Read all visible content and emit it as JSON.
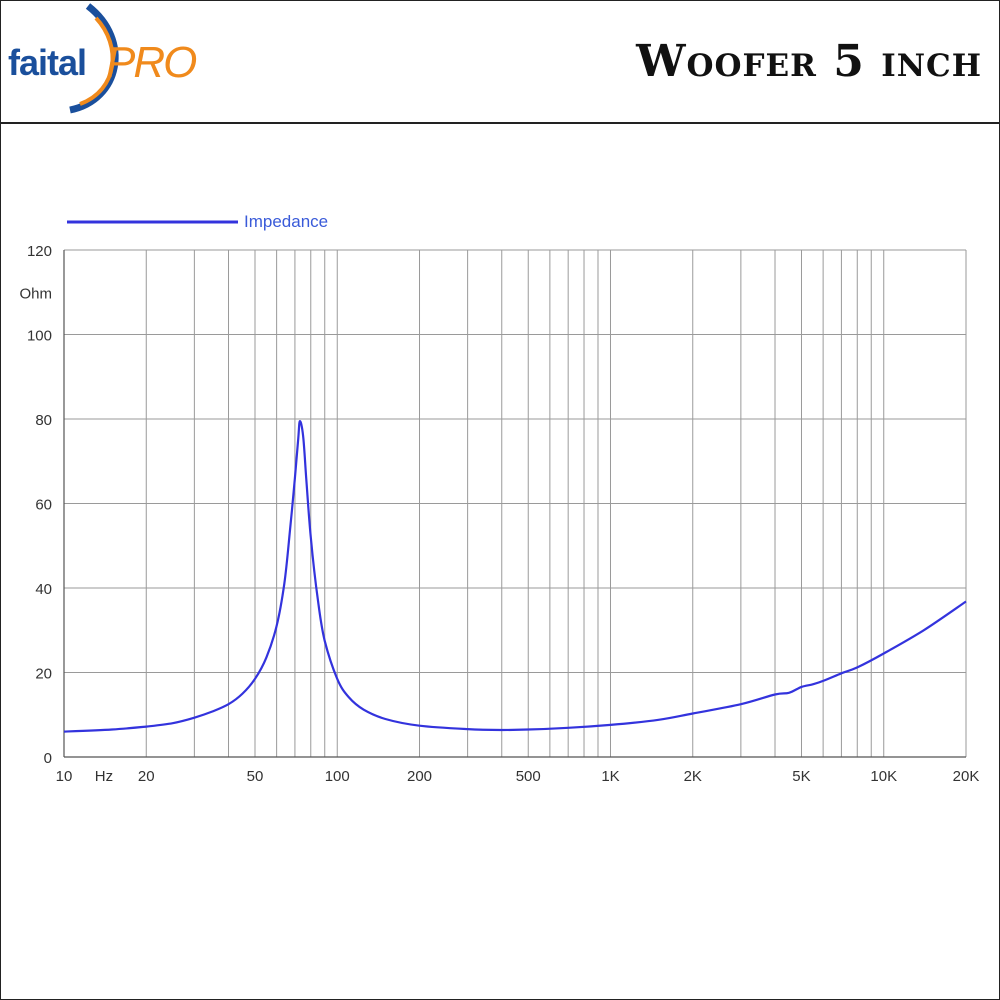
{
  "header": {
    "logo_main": "faital",
    "logo_pro": "PRO",
    "title": "Woofer 5 inch"
  },
  "colors": {
    "brand_blue": "#1a4f9c",
    "brand_orange": "#f08a1c",
    "series_blue": "#3333dd",
    "grid": "#9a9a9a"
  },
  "chart_data": {
    "type": "line",
    "x_scale": "log",
    "xlim": [
      10,
      20000
    ],
    "ylim": [
      0,
      120
    ],
    "ylabel": "Ohm",
    "xlabel": "Hz",
    "grid": true,
    "legend": "top-left",
    "y_ticks": [
      0,
      20,
      40,
      60,
      80,
      100,
      120
    ],
    "x_ticks": [
      {
        "value": 10,
        "label": "10"
      },
      {
        "value": 20,
        "label": "20"
      },
      {
        "value": 50,
        "label": "50"
      },
      {
        "value": 100,
        "label": "100"
      },
      {
        "value": 200,
        "label": "200"
      },
      {
        "value": 500,
        "label": "500"
      },
      {
        "value": 1000,
        "label": "1K"
      },
      {
        "value": 2000,
        "label": "2K"
      },
      {
        "value": 5000,
        "label": "5K"
      },
      {
        "value": 10000,
        "label": "10K"
      },
      {
        "value": 20000,
        "label": "20K"
      }
    ],
    "x_unit_label": {
      "value": 14,
      "label": "Hz"
    },
    "series": [
      {
        "name": "Impedance",
        "x": [
          10,
          15,
          20,
          25,
          30,
          35,
          40,
          45,
          50,
          55,
          60,
          64,
          67,
          70,
          72,
          73,
          75,
          77,
          80,
          85,
          90,
          100,
          110,
          125,
          150,
          200,
          300,
          400,
          500,
          700,
          1000,
          1500,
          2000,
          3000,
          4000,
          4500,
          5000,
          5500,
          6000,
          7000,
          8000,
          10000,
          14000,
          20000
        ],
        "y": [
          6.0,
          6.5,
          7.2,
          8.0,
          9.3,
          10.8,
          12.5,
          15.0,
          18.5,
          23.5,
          31.0,
          41.0,
          53.0,
          66.0,
          75.5,
          79.5,
          76.0,
          66.0,
          52.0,
          37.0,
          27.5,
          18.5,
          14.2,
          11.2,
          9.0,
          7.4,
          6.6,
          6.4,
          6.5,
          6.9,
          7.6,
          8.8,
          10.3,
          12.5,
          14.8,
          15.2,
          16.6,
          17.2,
          18.0,
          19.8,
          21.2,
          24.5,
          30.0,
          36.8
        ]
      }
    ]
  }
}
